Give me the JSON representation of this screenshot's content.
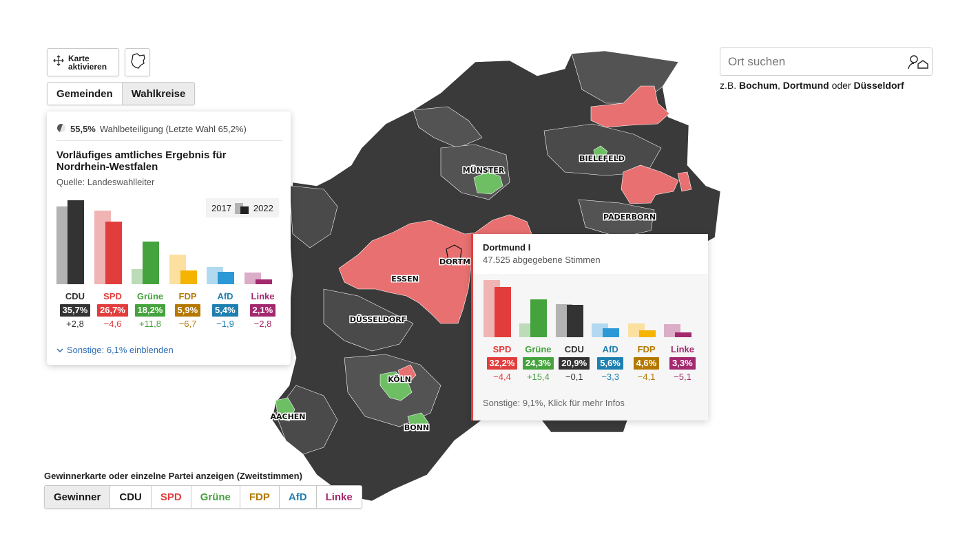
{
  "map_controls": {
    "activate_label_1": "Karte",
    "activate_label_2": "aktivieren",
    "level_tabs": [
      {
        "label": "Gemeinden",
        "active": false
      },
      {
        "label": "Wahlkreise",
        "active": true
      }
    ]
  },
  "search": {
    "placeholder": "Ort suchen",
    "hint_prefix": "z.B. ",
    "hint_city_1": "Bochum",
    "hint_sep": ", ",
    "hint_city_2": "Dortmund",
    "hint_or": " oder ",
    "hint_city_3": "Düsseldorf"
  },
  "colors": {
    "cdu": "#333333",
    "cdu_2017": "#b3b3b3",
    "spd": "#e23d3d",
    "spd_2017": "#f0b4b4",
    "gruene": "#45a33d",
    "gruene_2017": "#bcdcb7",
    "fdp": "#f4b400",
    "fdp_2017": "#fbe0a0",
    "fdp_text": "#b47800",
    "afd": "#2c99d6",
    "afd_2017": "#b2d9f0",
    "afd_text": "#1f7fb0",
    "linke": "#a3286e",
    "linke_2017": "#dcadc8",
    "map_dark": "#3a3a3a",
    "map_mid": "#535353",
    "map_spd": "#e87070",
    "map_green": "#6ebf64"
  },
  "state_result": {
    "turnout_value": "55,5%",
    "turnout_text": "Wahlbeteiligung (Letzte Wahl 65,2%)",
    "title": "Vorläufiges amtliches Ergebnis für Nordrhein-Westfalen",
    "source": "Quelle: Landeswahlleiter",
    "legend_2017": "2017",
    "legend_2022": "2022",
    "parties": [
      {
        "key": "cdu",
        "name": "CDU",
        "share": "35,7%",
        "diff": "+2,8",
        "v2022": 35.7,
        "v2017": 33.0
      },
      {
        "key": "spd",
        "name": "SPD",
        "share": "26,7%",
        "diff": "−4,6",
        "v2022": 26.7,
        "v2017": 31.2
      },
      {
        "key": "gruene",
        "name": "Grüne",
        "share": "18,2%",
        "diff": "+11,8",
        "v2022": 18.2,
        "v2017": 6.4
      },
      {
        "key": "fdp",
        "name": "FDP",
        "share": "5,9%",
        "diff": "−6,7",
        "v2022": 5.9,
        "v2017": 12.6
      },
      {
        "key": "afd",
        "name": "AfD",
        "share": "5,4%",
        "diff": "−1,9",
        "v2022": 5.4,
        "v2017": 7.4
      },
      {
        "key": "linke",
        "name": "Linke",
        "share": "2,1%",
        "diff": "−2,8",
        "v2022": 2.1,
        "v2017": 4.9
      }
    ],
    "others_toggle": "Sonstige: 6,1% einblenden"
  },
  "district_popup": {
    "name": "Dortmund I",
    "votes": "47.525 abgegebene Stimmen",
    "parties": [
      {
        "key": "spd",
        "name": "SPD",
        "share": "32,2%",
        "diff": "−4,4",
        "v2022": 32.2,
        "v2017": 36.6
      },
      {
        "key": "gruene",
        "name": "Grüne",
        "share": "24,3%",
        "diff": "+15,4",
        "v2022": 24.3,
        "v2017": 8.9
      },
      {
        "key": "cdu",
        "name": "CDU",
        "share": "20,9%",
        "diff": "−0,1",
        "v2022": 20.9,
        "v2017": 21.0
      },
      {
        "key": "afd",
        "name": "AfD",
        "share": "5,6%",
        "diff": "−3,3",
        "v2022": 5.6,
        "v2017": 8.9
      },
      {
        "key": "fdp",
        "name": "FDP",
        "share": "4,6%",
        "diff": "−4,1",
        "v2022": 4.6,
        "v2017": 8.7
      },
      {
        "key": "linke",
        "name": "Linke",
        "share": "3,3%",
        "diff": "−5,1",
        "v2022": 3.3,
        "v2017": 8.4
      }
    ],
    "footer": "Sonstige: 9,1%, Klick für mehr Infos"
  },
  "map_labels": [
    {
      "key": "muenster",
      "text": "MÜNSTER"
    },
    {
      "key": "bielefeld",
      "text": "BIELEFELD"
    },
    {
      "key": "paderborn",
      "text": "PADERBORN"
    },
    {
      "key": "dortmund",
      "text": "DORTM"
    },
    {
      "key": "essen",
      "text": "ESSEN"
    },
    {
      "key": "duesseldorf",
      "text": "DÜSSELDORF"
    },
    {
      "key": "koeln",
      "text": "KÖLN"
    },
    {
      "key": "aachen",
      "text": "AACHEN"
    },
    {
      "key": "bonn",
      "text": "BONN"
    }
  ],
  "filter": {
    "label": "Gewinnerkarte oder einzelne Partei anzeigen (Zweitstimmen)",
    "options": [
      {
        "label": "Gewinner",
        "key": "winner",
        "active": true
      },
      {
        "label": "CDU",
        "key": "cdu",
        "active": false
      },
      {
        "label": "SPD",
        "key": "spd",
        "active": false
      },
      {
        "label": "Grüne",
        "key": "gruene",
        "active": false
      },
      {
        "label": "FDP",
        "key": "fdp",
        "active": false
      },
      {
        "label": "AfD",
        "key": "afd",
        "active": false
      },
      {
        "label": "Linke",
        "key": "linke",
        "active": false
      }
    ]
  }
}
